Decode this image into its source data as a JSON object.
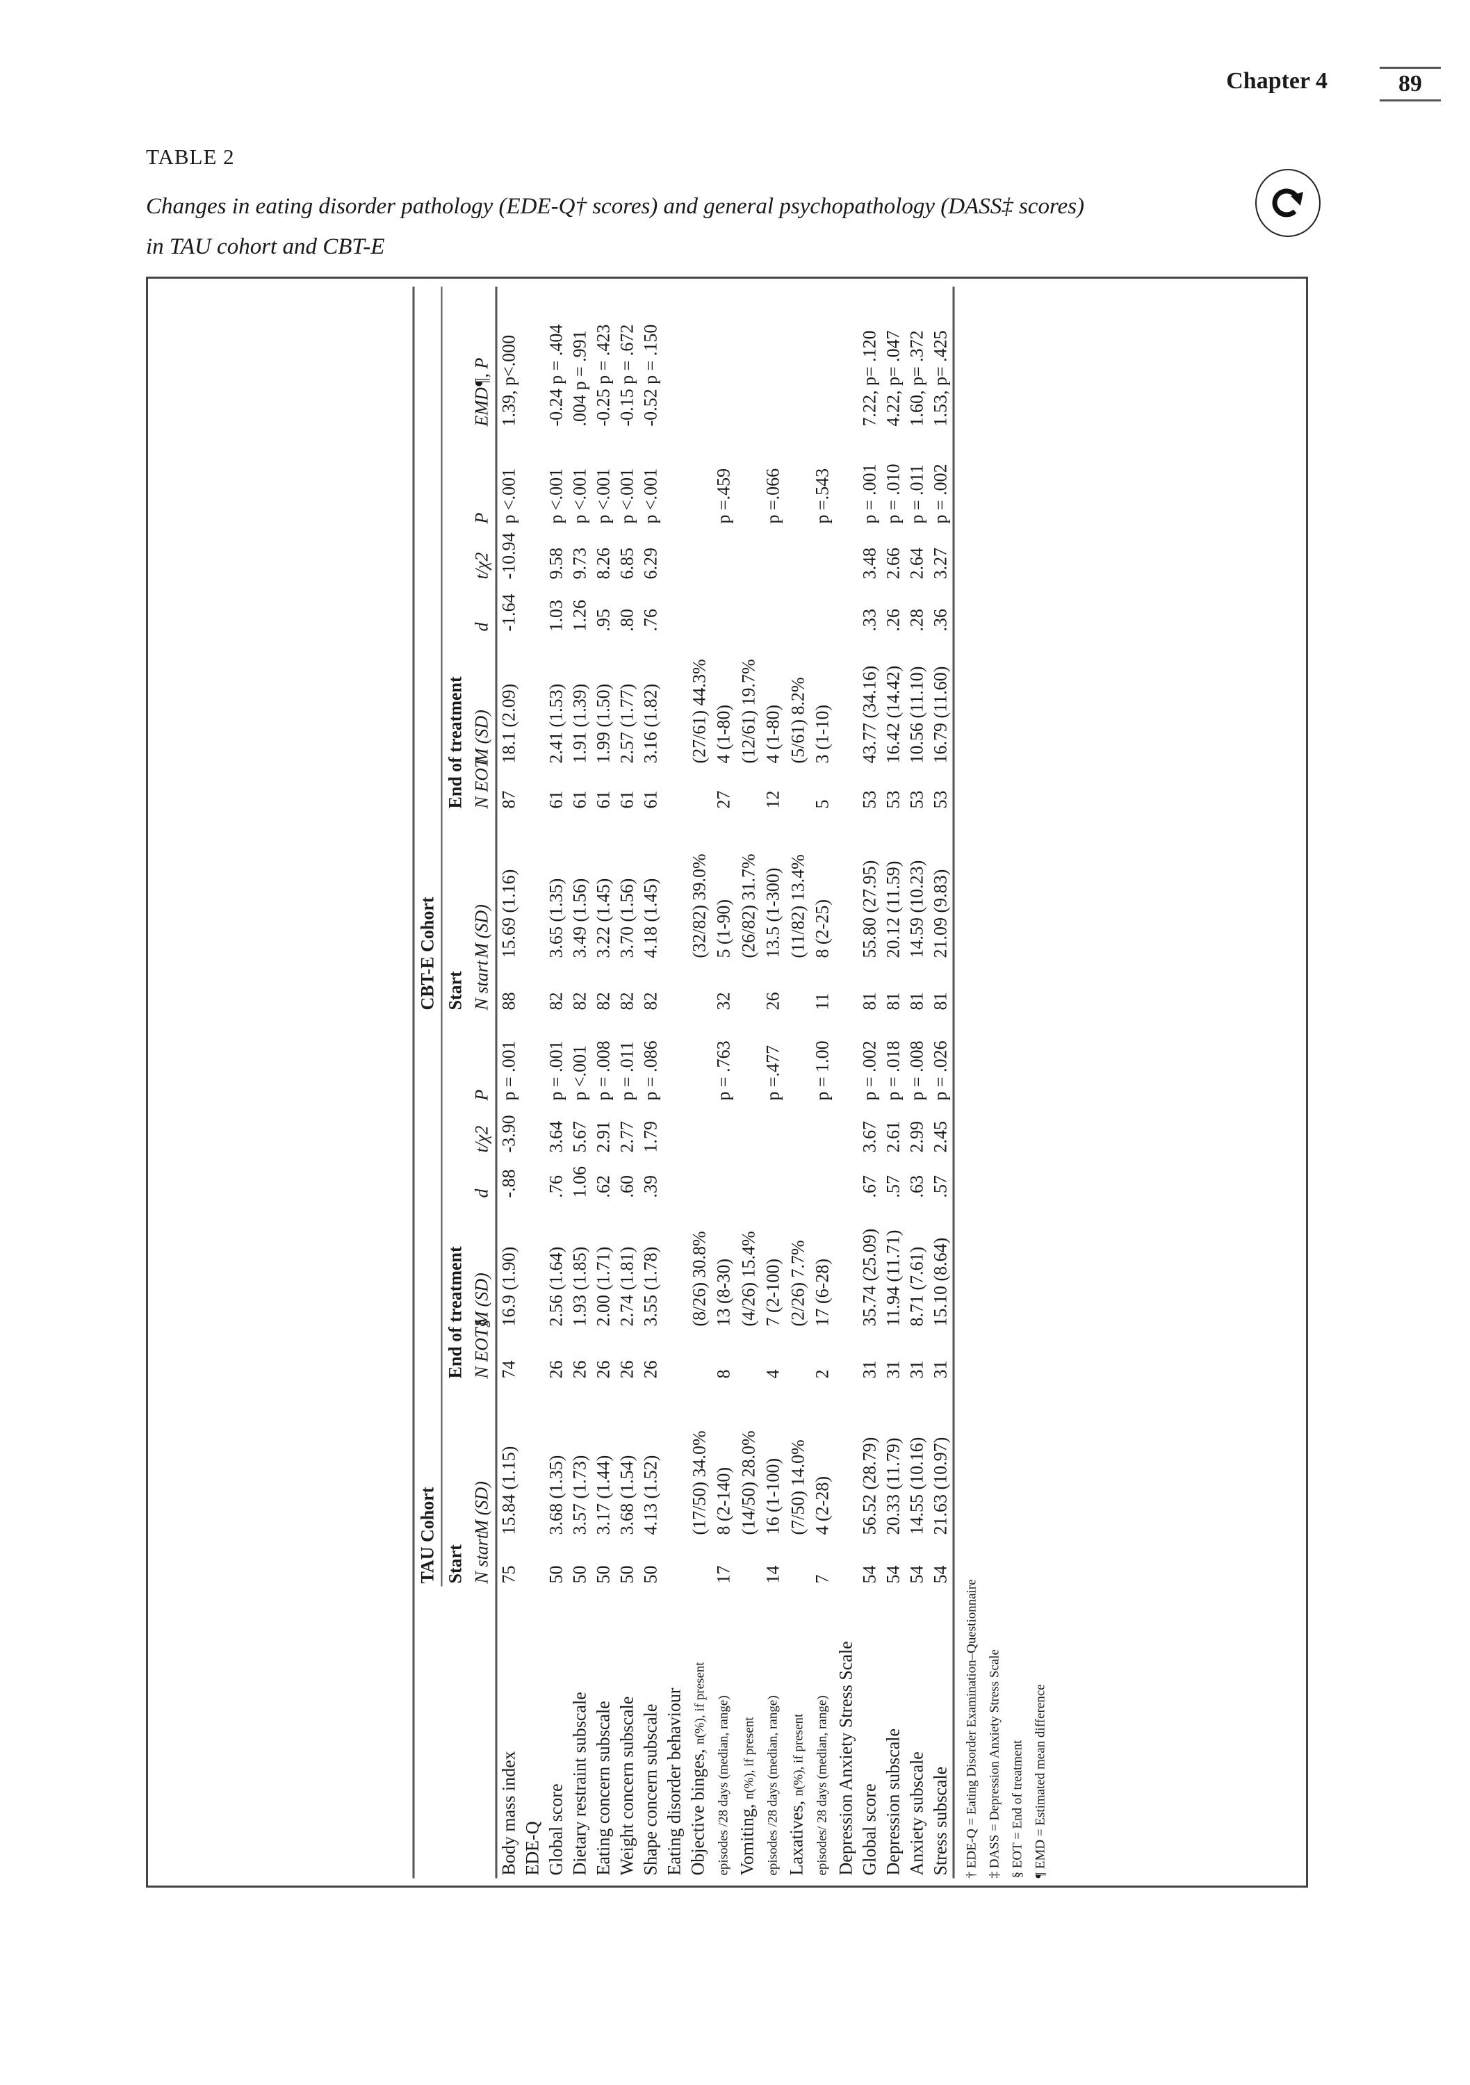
{
  "header": {
    "chapter": "Chapter 4",
    "page_number": "89"
  },
  "table_label": "TABLE 2",
  "caption_line1": "Changes in eating disorder pathology (EDE-Q† scores) and general psychopathology (DASS‡ scores)",
  "caption_line2": "in TAU cohort and CBT-E",
  "rotate_icon": "rotate-clockwise-icon",
  "table": {
    "groups": [
      "TAU Cohort",
      "CBT-E Cohort"
    ],
    "subgroups": [
      "Start",
      "End of treatment",
      "Start",
      "End of treatment"
    ],
    "columns": [
      "N start",
      "M (SD)",
      "N EOT§",
      "M (SD)",
      "d",
      "t/χ2",
      "P",
      "N start",
      "M (SD)",
      "N EOT",
      "M (SD)",
      "d",
      "t/χ2",
      "P",
      "EMD¶, P"
    ],
    "rows": [
      {
        "label": "Body mass index",
        "values": [
          "75",
          "15.84 (1.15)",
          "74",
          "16.9 (1.90)",
          "-.88",
          "-3.90",
          "p = .001",
          "88",
          "15.69 (1.16)",
          "87",
          "18.1 (2.09)",
          "-1.64",
          "-10.94",
          "p <.001",
          "1.39, p<.000"
        ]
      },
      {
        "label": "EDE-Q",
        "values": [
          "",
          "",
          "",
          "",
          "",
          "",
          "",
          "",
          "",
          "",
          "",
          "",
          "",
          "",
          ""
        ]
      },
      {
        "label": "Global score",
        "values": [
          "50",
          "3.68 (1.35)",
          "26",
          "2.56 (1.64)",
          ".76",
          "3.64",
          "p = .001",
          "82",
          "3.65 (1.35)",
          "61",
          "2.41 (1.53)",
          "1.03",
          "9.58",
          "p <.001",
          "-0.24 p = .404"
        ]
      },
      {
        "label": "Dietary restraint subscale",
        "values": [
          "50",
          "3.57 (1.73)",
          "26",
          "1.93 (1.85)",
          "1.06",
          "5.67",
          "p <.001",
          "82",
          "3.49 (1.56)",
          "61",
          "1.91 (1.39)",
          "1.26",
          "9.73",
          "p <.001",
          ".004 p = .991"
        ]
      },
      {
        "label": "Eating concern subscale",
        "values": [
          "50",
          "3.17 (1.44)",
          "26",
          "2.00 (1.71)",
          ".62",
          "2.91",
          "p = .008",
          "82",
          "3.22 (1.45)",
          "61",
          "1.99 (1.50)",
          ".95",
          "8.26",
          "p <.001",
          "-0.25 p = .423"
        ]
      },
      {
        "label": "Weight concern subscale",
        "values": [
          "50",
          "3.68 (1.54)",
          "26",
          "2.74 (1.81)",
          ".60",
          "2.77",
          "p = .011",
          "82",
          "3.70 (1.56)",
          "61",
          "2.57 (1.77)",
          ".80",
          "6.85",
          "p <.001",
          "-0.15 p = .672"
        ]
      },
      {
        "label": "Shape concern subscale",
        "values": [
          "50",
          "4.13 (1.52)",
          "26",
          "3.55 (1.78)",
          ".39",
          "1.79",
          "p = .086",
          "82",
          "4.18 (1.45)",
          "61",
          "3.16 (1.82)",
          ".76",
          "6.29",
          "p <.001",
          "-0.52 p = .150"
        ]
      },
      {
        "label": "Eating disorder behaviour",
        "values": [
          "",
          "",
          "",
          "",
          "",
          "",
          "",
          "",
          "",
          "",
          "",
          "",
          "",
          "",
          ""
        ]
      },
      {
        "label": "Objective binges, ",
        "label_small": "n(%), if present",
        "values": [
          "",
          "(17/50) 34.0%",
          "",
          "(8/26) 30.8%",
          "",
          "",
          "",
          "",
          "(32/82) 39.0%",
          "",
          "(27/61) 44.3%",
          "",
          "",
          "",
          ""
        ],
        "label2": "episodes /28 days (median, range)",
        "values2": [
          "17",
          "8 (2-140)",
          "8",
          "13 (8-30)",
          "",
          "",
          "p = .763",
          "32",
          "5 (1-90)",
          "27",
          "4 (1-80)",
          "",
          "",
          "p =.459",
          ""
        ]
      },
      {
        "label": "Vomiting, ",
        "label_small": "n(%), if present",
        "values": [
          "",
          "(14/50) 28.0%",
          "",
          "(4/26) 15.4%",
          "",
          "",
          "",
          "",
          "(26/82) 31.7%",
          "",
          "(12/61) 19.7%",
          "",
          "",
          "",
          ""
        ],
        "label2": "episodes /28 days (median, range)",
        "values2": [
          "14",
          "16 (1-100)",
          "4",
          "7 (2-100)",
          "",
          "",
          "p =.477",
          "26",
          "13.5 (1-300)",
          "12",
          "4 (1-80)",
          "",
          "",
          "p =.066",
          ""
        ]
      },
      {
        "label": "Laxatives, ",
        "label_small": "n(%), if present",
        "values": [
          "",
          "(7/50) 14.0%",
          "",
          "(2/26) 7.7%",
          "",
          "",
          "",
          "",
          "(11/82) 13.4%",
          "",
          "(5/61) 8.2%",
          "",
          "",
          "",
          ""
        ],
        "label2": "episodes/ 28 days (median, range)",
        "values2": [
          "7",
          "4 (2-28)",
          "2",
          "17 (6-28)",
          "",
          "",
          "p = 1.00",
          "11",
          "8 (2-25)",
          "5",
          "3 (1-10)",
          "",
          "",
          "p =.543",
          ""
        ]
      },
      {
        "label": "Depression Anxiety Stress Scale",
        "values": [
          "",
          "",
          "",
          "",
          "",
          "",
          "",
          "",
          "",
          "",
          "",
          "",
          "",
          "",
          ""
        ]
      },
      {
        "label": "Global score",
        "values": [
          "54",
          "56.52 (28.79)",
          "31",
          "35.74 (25.09)",
          ".67",
          "3.67",
          "p = .002",
          "81",
          "55.80 (27.95)",
          "53",
          "43.77 (34.16)",
          ".33",
          "3.48",
          "p = .001",
          "7.22, p= .120"
        ]
      },
      {
        "label": "Depression subscale",
        "values": [
          "54",
          "20.33 (11.79)",
          "31",
          "11.94 (11.71)",
          ".57",
          "2.61",
          "p = .018",
          "81",
          "20.12 (11.59)",
          "53",
          "16.42 (14.42)",
          ".26",
          "2.66",
          "p = .010",
          "4.22, p= .047"
        ]
      },
      {
        "label": "Anxiety subscale",
        "values": [
          "54",
          "14.55 (10.16)",
          "31",
          "8.71 (7.61)",
          ".63",
          "2.99",
          "p = .008",
          "81",
          "14.59 (10.23)",
          "53",
          "10.56 (11.10)",
          ".28",
          "2.64",
          "p = .011",
          "1.60, p= .372"
        ]
      },
      {
        "label": "Stress subscale",
        "values": [
          "54",
          "21.63 (10.97)",
          "31",
          "15.10 (8.64)",
          ".57",
          "2.45",
          "p = .026",
          "81",
          "21.09 (9.83)",
          "53",
          "16.79 (11.60)",
          ".36",
          "3.27",
          "p = .002",
          "1.53, p= .425"
        ]
      }
    ],
    "footnotes": [
      "† EDE-Q = Eating Disorder Examination–Questionnaire",
      "‡ DASS = Depression Anxiety Stress Scale",
      "§ EOT = End of treatment",
      "¶ EMD = Estimated mean difference"
    ]
  }
}
